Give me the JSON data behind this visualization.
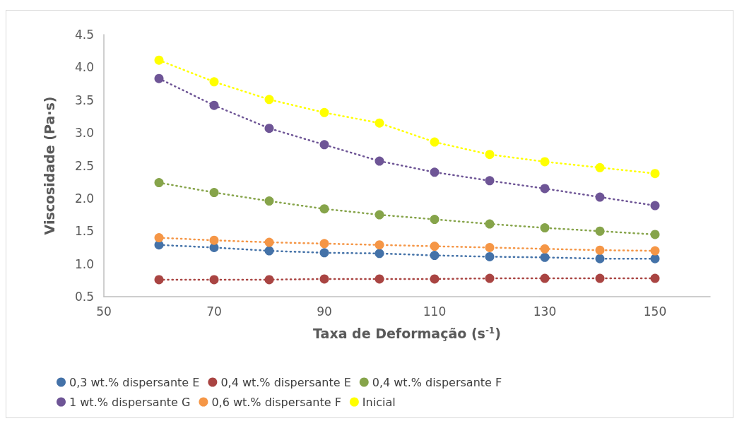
{
  "chart_data": {
    "type": "line",
    "xlabel": "Taxa de Deformação (s$^{-1}$)",
    "ylabel": "Viscosidade (Pa·s)",
    "x": [
      60,
      70,
      80,
      90,
      100,
      110,
      120,
      130,
      140,
      150
    ],
    "xlim": [
      50,
      160
    ],
    "xticks": [
      50,
      70,
      90,
      110,
      130,
      150
    ],
    "ylim": [
      0.5,
      4.5
    ],
    "yticks": [
      0.5,
      {
        "value": 1,
        "label": "1.0"
      },
      1.5,
      {
        "value": 2,
        "label": "2.0"
      },
      2.5,
      {
        "value": 3,
        "label": "3.0"
      },
      3.5,
      {
        "value": 4,
        "label": "4.0"
      },
      4.5
    ],
    "grid": false,
    "legend": "bottom",
    "marker": "circle",
    "line_style": "dotted",
    "series": [
      {
        "name": "0,3 wt.% dispersante E",
        "color": "#4472a8",
        "values": [
          1.29,
          1.25,
          1.2,
          1.17,
          1.16,
          1.13,
          1.11,
          1.1,
          1.08,
          1.08
        ]
      },
      {
        "name": "0,4 wt.% dispersante E",
        "color": "#a94442",
        "values": [
          0.76,
          0.76,
          0.76,
          0.77,
          0.77,
          0.77,
          0.78,
          0.78,
          0.78,
          0.78
        ]
      },
      {
        "name": "0,4 wt.% dispersante F",
        "color": "#86a44a",
        "values": [
          2.24,
          2.09,
          1.96,
          1.84,
          1.75,
          1.68,
          1.61,
          1.55,
          1.5,
          1.45
        ]
      },
      {
        "name": "1 wt.% dispersante G",
        "color": "#6e5596",
        "values": [
          3.83,
          3.42,
          3.07,
          2.82,
          2.57,
          2.4,
          2.27,
          2.15,
          2.02,
          1.89
        ]
      },
      {
        "name": "0,6 wt.% dispersante F",
        "color": "#f59646",
        "values": [
          1.4,
          1.36,
          1.33,
          1.31,
          1.29,
          1.27,
          1.25,
          1.23,
          1.21,
          1.2
        ]
      },
      {
        "name": "Inicial",
        "color": "#ffff00",
        "values": [
          4.11,
          3.78,
          3.51,
          3.31,
          3.15,
          2.86,
          2.67,
          2.56,
          2.47,
          2.38
        ]
      }
    ]
  }
}
